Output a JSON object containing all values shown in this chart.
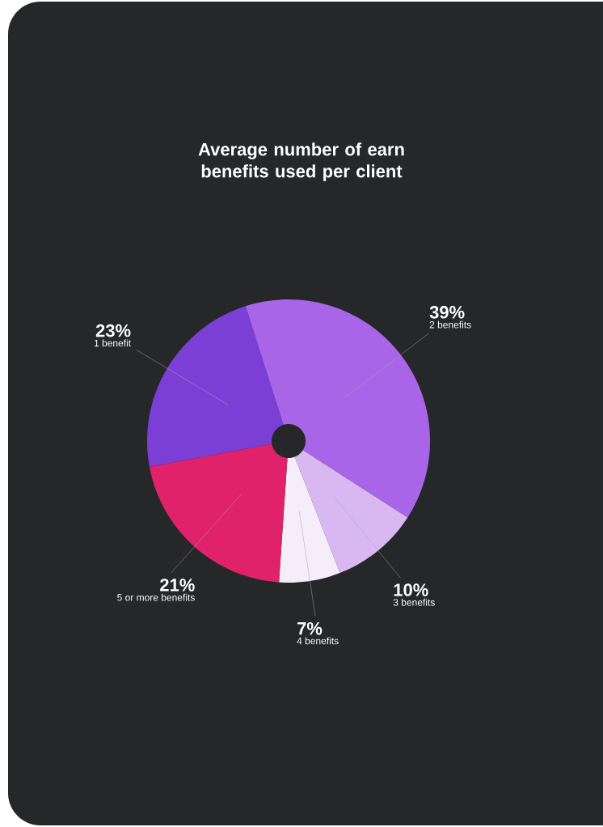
{
  "chart_data": {
    "type": "pie",
    "title": "Average number of earn benefits used per client",
    "categories": [
      "1 benefit",
      "2 benefits",
      "3 benefits",
      "4 benefits",
      "5 or more benefits"
    ],
    "values": [
      23,
      39,
      10,
      7,
      21
    ],
    "value_labels": [
      "23%",
      "39%",
      "10%",
      "7%",
      "21%"
    ],
    "colors": [
      "#7b3fd6",
      "#a865e8",
      "#d9b8f2",
      "#f5eefa",
      "#e0226a"
    ]
  }
}
